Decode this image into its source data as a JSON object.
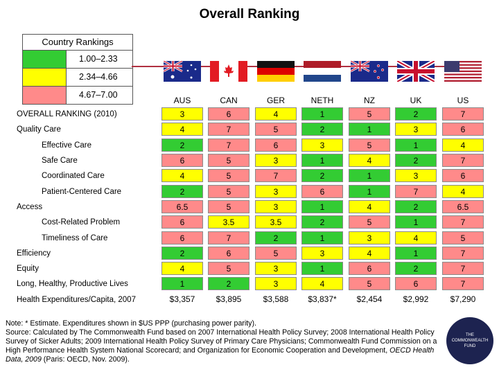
{
  "title": "Overall Ranking",
  "legend": {
    "heading": "Country Rankings",
    "items": [
      {
        "label": "1.00–2.33",
        "color": "#33cc33"
      },
      {
        "label": "2.34–4.66",
        "color": "#ffff00"
      },
      {
        "label": "4.67–7.00",
        "color": "#ff8a8a"
      }
    ]
  },
  "countries": [
    "AUS",
    "CAN",
    "GER",
    "NETH",
    "NZ",
    "UK",
    "US"
  ],
  "rows": [
    {
      "label": "OVERALL RANKING (2010)",
      "indent": false,
      "values": [
        "3",
        "6",
        "4",
        "1",
        "5",
        "2",
        "7"
      ]
    },
    {
      "label": "Quality Care",
      "indent": false,
      "values": [
        "4",
        "7",
        "5",
        "2",
        "1",
        "3",
        "6"
      ]
    },
    {
      "label": "Effective Care",
      "indent": true,
      "values": [
        "2",
        "7",
        "6",
        "3",
        "5",
        "1",
        "4"
      ]
    },
    {
      "label": "Safe Care",
      "indent": true,
      "values": [
        "6",
        "5",
        "3",
        "1",
        "4",
        "2",
        "7"
      ]
    },
    {
      "label": "Coordinated Care",
      "indent": true,
      "values": [
        "4",
        "5",
        "7",
        "2",
        "1",
        "3",
        "6"
      ]
    },
    {
      "label": "Patient-Centered Care",
      "indent": true,
      "values": [
        "2",
        "5",
        "3",
        "6",
        "1",
        "7",
        "4"
      ]
    },
    {
      "label": "Access",
      "indent": false,
      "values": [
        "6.5",
        "5",
        "3",
        "1",
        "4",
        "2",
        "6.5"
      ]
    },
    {
      "label": "Cost-Related Problem",
      "indent": true,
      "values": [
        "6",
        "3.5",
        "3.5",
        "2",
        "5",
        "1",
        "7"
      ]
    },
    {
      "label": "Timeliness of Care",
      "indent": true,
      "values": [
        "6",
        "7",
        "2",
        "1",
        "3",
        "4",
        "5"
      ]
    },
    {
      "label": "Efficiency",
      "indent": false,
      "values": [
        "2",
        "6",
        "5",
        "3",
        "4",
        "1",
        "7"
      ]
    },
    {
      "label": "Equity",
      "indent": false,
      "values": [
        "4",
        "5",
        "3",
        "1",
        "6",
        "2",
        "7"
      ]
    },
    {
      "label": "Long, Healthy, Productive Lives",
      "indent": false,
      "values": [
        "1",
        "2",
        "3",
        "4",
        "5",
        "6",
        "7"
      ]
    },
    {
      "label": "Health Expenditures/Capita, 2007",
      "indent": false,
      "money": true,
      "values": [
        "$3,357",
        "$3,895",
        "$3,588",
        "$3,837*",
        "$2,454",
        "$2,992",
        "$7,290"
      ]
    }
  ],
  "note": {
    "line1": "Note: * Estimate. Expenditures shown in $US PPP (purchasing power parity).",
    "line2": "Source: Calculated by The Commonwealth Fund based on 2007 International Health Policy Survey; 2008 International Health Policy Survey of Sicker Adults; 2009 International Health Policy Survey of Primary Care Physicians; Commonwealth Fund Commission on a High Performance Health System National Scorecard; and Organization for Economic Cooperation and Development, ",
    "italic": "OECD Health Data, 2009",
    "line3": " (Paris: OECD, Nov. 2009)."
  },
  "logo": {
    "line1": "THE",
    "line2": "COMMONWEALTH",
    "line3": "FUND"
  }
}
